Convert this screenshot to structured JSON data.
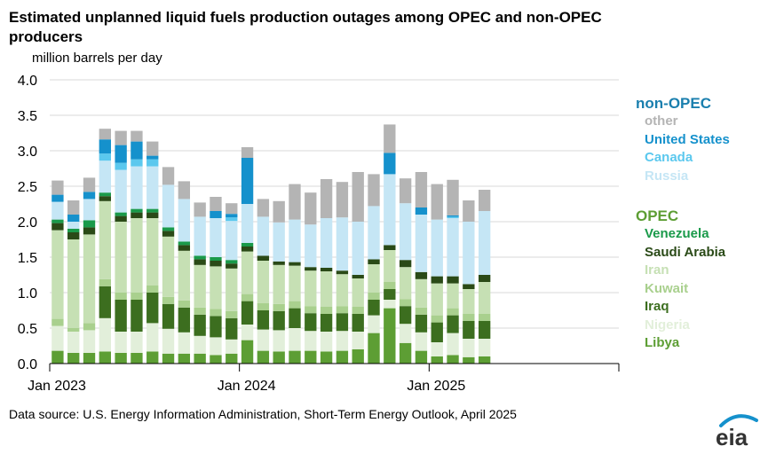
{
  "title": "Estimated unplanned liquid fuels production outages among OPEC and non-OPEC producers",
  "unit_label": "million  barrels per day",
  "source": "Data source: U.S. Energy Information Administration, Short-Term Energy Outlook, April 2025",
  "logo_text": "eia",
  "colors": {
    "Libya": "#5d9e34",
    "Nigeria": "#e2efda",
    "Iraq": "#3c6e1f",
    "Kuwait": "#a9d08e",
    "Iran": "#c6e0b4",
    "Saudi Arabia": "#2a4a17",
    "Venezuela": "#1a9a4a",
    "Russia": "#c5e6f5",
    "Canada": "#5bc8ee",
    "United States": "#1591cc",
    "other": "#b4b4b4",
    "nonopec_heading": "#1a7fae",
    "opec_heading": "#5d9e34"
  },
  "legend": {
    "nonopec": {
      "heading": "non-OPEC",
      "items": [
        {
          "label": "other",
          "color": "#b4b4b4"
        },
        {
          "label": "United States",
          "color": "#1591cc"
        },
        {
          "label": "Canada",
          "color": "#5bc8ee"
        },
        {
          "label": "Russia",
          "color": "#c5e6f5"
        }
      ]
    },
    "opec": {
      "heading": "OPEC",
      "items": [
        {
          "label": "Venezuela",
          "color": "#1a9a4a"
        },
        {
          "label": "Saudi Arabia",
          "color": "#2a4a17"
        },
        {
          "label": "Iran",
          "color": "#c6e0b4"
        },
        {
          "label": "Kuwait",
          "color": "#a9d08e"
        },
        {
          "label": "Iraq",
          "color": "#3c6e1f"
        },
        {
          "label": "Nigeria",
          "color": "#e2efda"
        },
        {
          "label": "Libya",
          "color": "#5d9e34"
        }
      ]
    }
  },
  "chart_data": {
    "type": "bar",
    "stacked": true,
    "ylim": [
      0,
      4.0
    ],
    "yticks": [
      "0.0",
      "0.5",
      "1.0",
      "1.5",
      "2.0",
      "2.5",
      "3.0",
      "3.5",
      "4.0"
    ],
    "xticks": [
      {
        "label": "Jan 2023",
        "index": 0
      },
      {
        "label": "Jan 2024",
        "index": 12
      },
      {
        "label": "Jan 2025",
        "index": 24
      },
      {
        "label": "",
        "index": 36
      }
    ],
    "n_slots": 36,
    "categories": [
      "Jan 2023",
      "Feb 2023",
      "Mar 2023",
      "Apr 2023",
      "May 2023",
      "Jun 2023",
      "Jul 2023",
      "Aug 2023",
      "Sep 2023",
      "Oct 2023",
      "Nov 2023",
      "Dec 2023",
      "Jan 2024",
      "Feb 2024",
      "Mar 2024",
      "Apr 2024",
      "May 2024",
      "Jun 2024",
      "Jul 2024",
      "Aug 2024",
      "Sep 2024",
      "Oct 2024",
      "Nov 2024",
      "Dec 2024",
      "Jan 2025",
      "Feb 2025",
      "Mar 2025",
      "Apr 2025"
    ],
    "series": [
      {
        "name": "Libya",
        "values": [
          0.18,
          0.15,
          0.15,
          0.17,
          0.15,
          0.15,
          0.17,
          0.14,
          0.14,
          0.14,
          0.12,
          0.14,
          0.33,
          0.18,
          0.17,
          0.18,
          0.18,
          0.17,
          0.18,
          0.2,
          0.43,
          0.78,
          0.29,
          0.18,
          0.1,
          0.12,
          0.09,
          0.1
        ]
      },
      {
        "name": "Nigeria",
        "values": [
          0.35,
          0.3,
          0.32,
          0.47,
          0.3,
          0.3,
          0.4,
          0.35,
          0.3,
          0.25,
          0.25,
          0.2,
          0.22,
          0.3,
          0.3,
          0.32,
          0.28,
          0.28,
          0.28,
          0.25,
          0.25,
          0.12,
          0.27,
          0.26,
          0.2,
          0.31,
          0.26,
          0.25
        ]
      },
      {
        "name": "Iraq",
        "values": [
          0.0,
          0.0,
          0.0,
          0.45,
          0.45,
          0.45,
          0.43,
          0.35,
          0.35,
          0.3,
          0.3,
          0.3,
          0.33,
          0.27,
          0.27,
          0.28,
          0.25,
          0.25,
          0.25,
          0.25,
          0.22,
          0.15,
          0.25,
          0.25,
          0.28,
          0.25,
          0.25,
          0.25
        ]
      },
      {
        "name": "Kuwait",
        "values": [
          0.1,
          0.05,
          0.1,
          0.1,
          0.1,
          0.1,
          0.1,
          0.1,
          0.1,
          0.1,
          0.1,
          0.1,
          0.1,
          0.1,
          0.1,
          0.1,
          0.1,
          0.1,
          0.1,
          0.1,
          0.1,
          0.1,
          0.1,
          0.1,
          0.1,
          0.1,
          0.1,
          0.1
        ]
      },
      {
        "name": "Iran",
        "values": [
          1.25,
          1.25,
          1.25,
          1.1,
          1.0,
          1.05,
          0.95,
          0.85,
          0.7,
          0.6,
          0.6,
          0.6,
          0.6,
          0.6,
          0.55,
          0.5,
          0.5,
          0.5,
          0.45,
          0.4,
          0.4,
          0.45,
          0.45,
          0.4,
          0.45,
          0.35,
          0.35,
          0.45
        ]
      },
      {
        "name": "Saudi Arabia",
        "values": [
          0.1,
          0.1,
          0.1,
          0.07,
          0.08,
          0.08,
          0.08,
          0.08,
          0.08,
          0.08,
          0.08,
          0.07,
          0.07,
          0.07,
          0.05,
          0.05,
          0.05,
          0.05,
          0.05,
          0.05,
          0.07,
          0.07,
          0.1,
          0.1,
          0.1,
          0.1,
          0.07,
          0.1
        ]
      },
      {
        "name": "Venezuela",
        "values": [
          0.05,
          0.05,
          0.1,
          0.05,
          0.05,
          0.05,
          0.05,
          0.05,
          0.05,
          0.05,
          0.05,
          0.05,
          0.05,
          0.0,
          0.0,
          0.0,
          0.0,
          0.0,
          0.0,
          0.0,
          0.0,
          0.0,
          0.0,
          0.0,
          0.0,
          0.0,
          0.0,
          0.0
        ]
      },
      {
        "name": "Russia",
        "values": [
          0.25,
          0.1,
          0.3,
          0.45,
          0.6,
          0.6,
          0.6,
          0.6,
          0.6,
          0.55,
          0.55,
          0.55,
          0.55,
          0.55,
          0.55,
          0.6,
          0.6,
          0.7,
          0.75,
          0.75,
          0.75,
          1.0,
          0.8,
          0.81,
          0.8,
          0.82,
          0.88,
          0.9
        ]
      },
      {
        "name": "Canada",
        "values": [
          0.0,
          0.0,
          0.0,
          0.1,
          0.1,
          0.1,
          0.1,
          0.0,
          0.0,
          0.0,
          0.0,
          0.05,
          0.0,
          0.0,
          0.0,
          0.0,
          0.0,
          0.0,
          0.0,
          0.0,
          0.0,
          0.0,
          0.0,
          0.0,
          0.0,
          0.02,
          0.0,
          0.0
        ]
      },
      {
        "name": "United States",
        "values": [
          0.1,
          0.1,
          0.1,
          0.2,
          0.25,
          0.25,
          0.05,
          0.0,
          0.0,
          0.0,
          0.1,
          0.05,
          0.65,
          0.0,
          0.0,
          0.0,
          0.0,
          0.0,
          0.0,
          0.0,
          0.0,
          0.3,
          0.0,
          0.1,
          0.0,
          0.02,
          0.0,
          0.0
        ]
      },
      {
        "name": "other",
        "values": [
          0.2,
          0.2,
          0.2,
          0.15,
          0.2,
          0.15,
          0.2,
          0.25,
          0.25,
          0.2,
          0.2,
          0.15,
          0.15,
          0.25,
          0.3,
          0.5,
          0.45,
          0.55,
          0.5,
          0.7,
          0.45,
          0.4,
          0.35,
          0.5,
          0.5,
          0.5,
          0.3,
          0.3
        ]
      }
    ]
  }
}
